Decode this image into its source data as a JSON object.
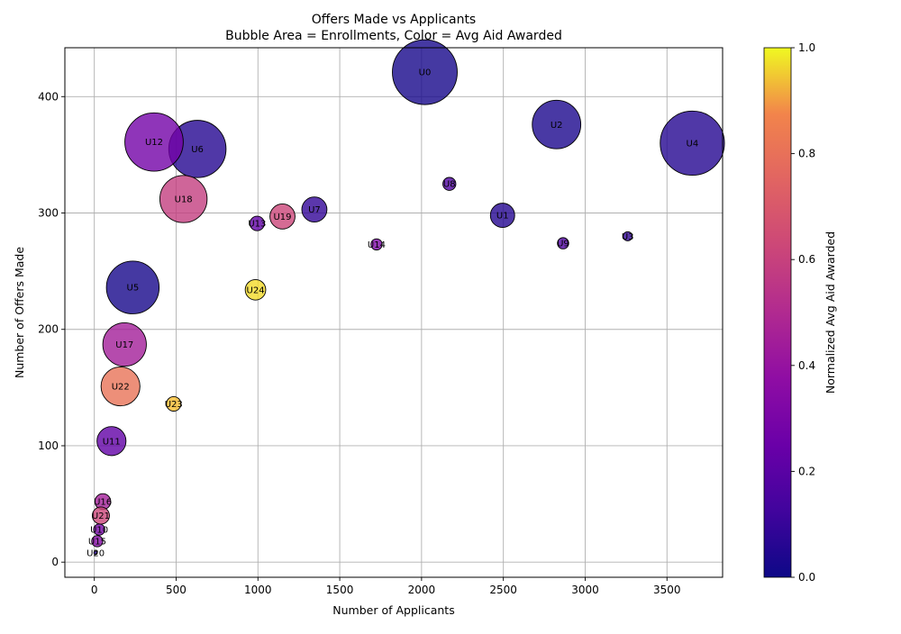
{
  "chart_data": {
    "type": "scatter",
    "title_line1": "Offers Made vs Applicants",
    "title_line2": "Bubble Area = Enrollments, Color = Avg Aid Awarded",
    "xlabel": "Number of Applicants",
    "ylabel": "Number of Offers Made",
    "xlim": [
      -180,
      3840
    ],
    "ylim": [
      -13,
      442
    ],
    "xticks": [
      0,
      500,
      1000,
      1500,
      2000,
      2500,
      3000,
      3500
    ],
    "yticks": [
      0,
      100,
      200,
      300,
      400
    ],
    "grid": true,
    "colorbar": {
      "label": "Normalized Avg Aid Awarded",
      "colormap": "plasma",
      "range": [
        0,
        1
      ],
      "ticks": [
        "0.0",
        "0.2",
        "0.4",
        "0.6",
        "0.8",
        "1.0"
      ]
    },
    "points": [
      {
        "label": "U0",
        "applicants": 2020,
        "offers": 421,
        "enrollments_rel": 1.0,
        "aid": 0.02
      },
      {
        "label": "U1",
        "applicants": 2495,
        "offers": 298,
        "enrollments_rel": 0.14,
        "aid": 0.05
      },
      {
        "label": "U2",
        "applicants": 2825,
        "offers": 376,
        "enrollments_rel": 0.56,
        "aid": 0.03
      },
      {
        "label": "U3",
        "applicants": 3260,
        "offers": 280,
        "enrollments_rel": 0.02,
        "aid": 0.08
      },
      {
        "label": "U4",
        "applicants": 3655,
        "offers": 360,
        "enrollments_rel": 0.98,
        "aid": 0.05
      },
      {
        "label": "U5",
        "applicants": 235,
        "offers": 236,
        "enrollments_rel": 0.66,
        "aid": 0.02
      },
      {
        "label": "U6",
        "applicants": 630,
        "offers": 355,
        "enrollments_rel": 0.78,
        "aid": 0.05
      },
      {
        "label": "U7",
        "applicants": 1345,
        "offers": 303,
        "enrollments_rel": 0.15,
        "aid": 0.08
      },
      {
        "label": "U8",
        "applicants": 2170,
        "offers": 325,
        "enrollments_rel": 0.04,
        "aid": 0.15
      },
      {
        "label": "U9",
        "applicants": 2865,
        "offers": 274,
        "enrollments_rel": 0.03,
        "aid": 0.15
      },
      {
        "label": "U10",
        "applicants": 30,
        "offers": 28,
        "enrollments_rel": 0.03,
        "aid": 0.26
      },
      {
        "label": "U11",
        "applicants": 105,
        "offers": 104,
        "enrollments_rel": 0.2,
        "aid": 0.2
      },
      {
        "label": "U12",
        "applicants": 365,
        "offers": 361,
        "enrollments_rel": 0.81,
        "aid": 0.25
      },
      {
        "label": "U13",
        "applicants": 995,
        "offers": 291,
        "enrollments_rel": 0.05,
        "aid": 0.2
      },
      {
        "label": "U14",
        "applicants": 1725,
        "offers": 273,
        "enrollments_rel": 0.03,
        "aid": 0.28
      },
      {
        "label": "U15",
        "applicants": 18,
        "offers": 18,
        "enrollments_rel": 0.03,
        "aid": 0.3
      },
      {
        "label": "U16",
        "applicants": 52,
        "offers": 52,
        "enrollments_rel": 0.06,
        "aid": 0.4
      },
      {
        "label": "U17",
        "applicants": 185,
        "offers": 187,
        "enrollments_rel": 0.45,
        "aid": 0.4
      },
      {
        "label": "U18",
        "applicants": 545,
        "offers": 312,
        "enrollments_rel": 0.53,
        "aid": 0.52
      },
      {
        "label": "U19",
        "applicants": 1150,
        "offers": 297,
        "enrollments_rel": 0.15,
        "aid": 0.55
      },
      {
        "label": "U20",
        "applicants": 8,
        "offers": 8,
        "enrollments_rel": 0.0,
        "aid": 0.05
      },
      {
        "label": "U21",
        "applicants": 40,
        "offers": 40,
        "enrollments_rel": 0.07,
        "aid": 0.55
      },
      {
        "label": "U22",
        "applicants": 160,
        "offers": 151,
        "enrollments_rel": 0.36,
        "aid": 0.72
      },
      {
        "label": "U23",
        "applicants": 485,
        "offers": 136,
        "enrollments_rel": 0.05,
        "aid": 0.92
      },
      {
        "label": "U24",
        "applicants": 985,
        "offers": 234,
        "enrollments_rel": 0.1,
        "aid": 0.96
      }
    ]
  }
}
